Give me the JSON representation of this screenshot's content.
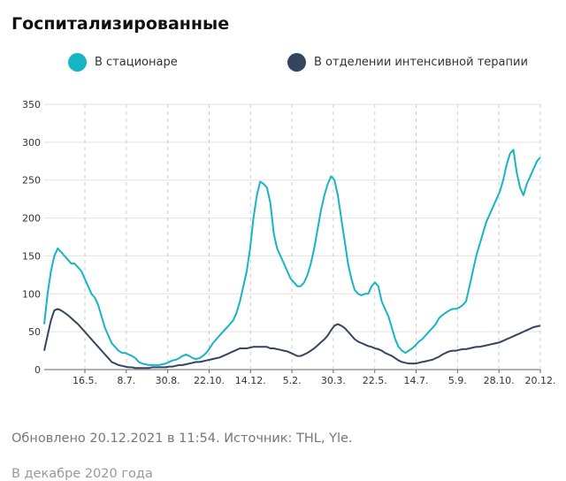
{
  "header": {
    "title": "Госпитализированные"
  },
  "chart_data": {
    "type": "line",
    "title": "Госпитализированные",
    "xlabel": "",
    "ylabel": "",
    "ylim": [
      0,
      350
    ],
    "yticks": [
      "0",
      "50",
      "100",
      "150",
      "200",
      "250",
      "300",
      "350"
    ],
    "xticks": [
      "16.5.",
      "8.7.",
      "30.8.",
      "22.10.",
      "14.12.",
      "5.2.",
      "30.3.",
      "22.5.",
      "14.7.",
      "5.9.",
      "28.10.",
      "20.12."
    ],
    "grid": true,
    "legend_position": "top",
    "series": [
      {
        "name": "В стационаре",
        "color": "#17b5c4",
        "values": [
          60,
          100,
          130,
          150,
          160,
          155,
          150,
          145,
          140,
          140,
          135,
          130,
          120,
          110,
          100,
          95,
          85,
          70,
          55,
          45,
          35,
          30,
          25,
          22,
          22,
          20,
          18,
          15,
          10,
          8,
          7,
          6,
          6,
          6,
          6,
          7,
          8,
          10,
          12,
          13,
          15,
          18,
          20,
          18,
          15,
          14,
          15,
          18,
          22,
          28,
          35,
          40,
          45,
          50,
          55,
          60,
          65,
          75,
          90,
          110,
          130,
          160,
          200,
          230,
          248,
          245,
          240,
          220,
          180,
          160,
          150,
          140,
          130,
          120,
          115,
          110,
          110,
          115,
          125,
          140,
          160,
          185,
          210,
          230,
          245,
          255,
          250,
          230,
          200,
          170,
          140,
          120,
          105,
          100,
          98,
          100,
          100,
          110,
          115,
          110,
          90,
          80,
          70,
          55,
          40,
          30,
          25,
          22,
          25,
          28,
          32,
          37,
          40,
          45,
          50,
          55,
          60,
          68,
          72,
          75,
          78,
          80,
          80,
          82,
          85,
          90,
          110,
          130,
          150,
          165,
          180,
          195,
          205,
          215,
          225,
          235,
          250,
          270,
          285,
          290,
          260,
          240,
          230,
          245,
          255,
          265,
          275,
          280
        ]
      },
      {
        "name": "В отделении интенсивной терапии",
        "color": "#34455e",
        "values": [
          25,
          45,
          65,
          78,
          80,
          78,
          75,
          72,
          68,
          64,
          60,
          55,
          50,
          45,
          40,
          35,
          30,
          25,
          20,
          15,
          10,
          8,
          6,
          5,
          4,
          3,
          3,
          2,
          2,
          2,
          2,
          2,
          3,
          3,
          3,
          3,
          3,
          4,
          4,
          5,
          6,
          6,
          7,
          8,
          9,
          10,
          10,
          11,
          12,
          13,
          14,
          15,
          16,
          18,
          20,
          22,
          24,
          26,
          28,
          28,
          28,
          29,
          30,
          30,
          30,
          30,
          30,
          28,
          28,
          27,
          26,
          25,
          24,
          22,
          20,
          18,
          18,
          20,
          22,
          25,
          28,
          32,
          36,
          40,
          45,
          52,
          58,
          60,
          58,
          55,
          50,
          45,
          40,
          37,
          35,
          33,
          31,
          30,
          28,
          27,
          25,
          22,
          20,
          18,
          15,
          12,
          10,
          9,
          8,
          8,
          8,
          9,
          10,
          11,
          12,
          13,
          15,
          17,
          20,
          22,
          24,
          25,
          25,
          26,
          27,
          27,
          28,
          29,
          30,
          30,
          31,
          32,
          33,
          34,
          35,
          36,
          38,
          40,
          42,
          44,
          46,
          48,
          50,
          52,
          54,
          56,
          57,
          58
        ]
      }
    ]
  },
  "footer": {
    "text": "Обновлено 20.12.2021 в 11:54. Источник: THL, Yle."
  },
  "tail": {
    "text": "В декабре 2020 года"
  }
}
